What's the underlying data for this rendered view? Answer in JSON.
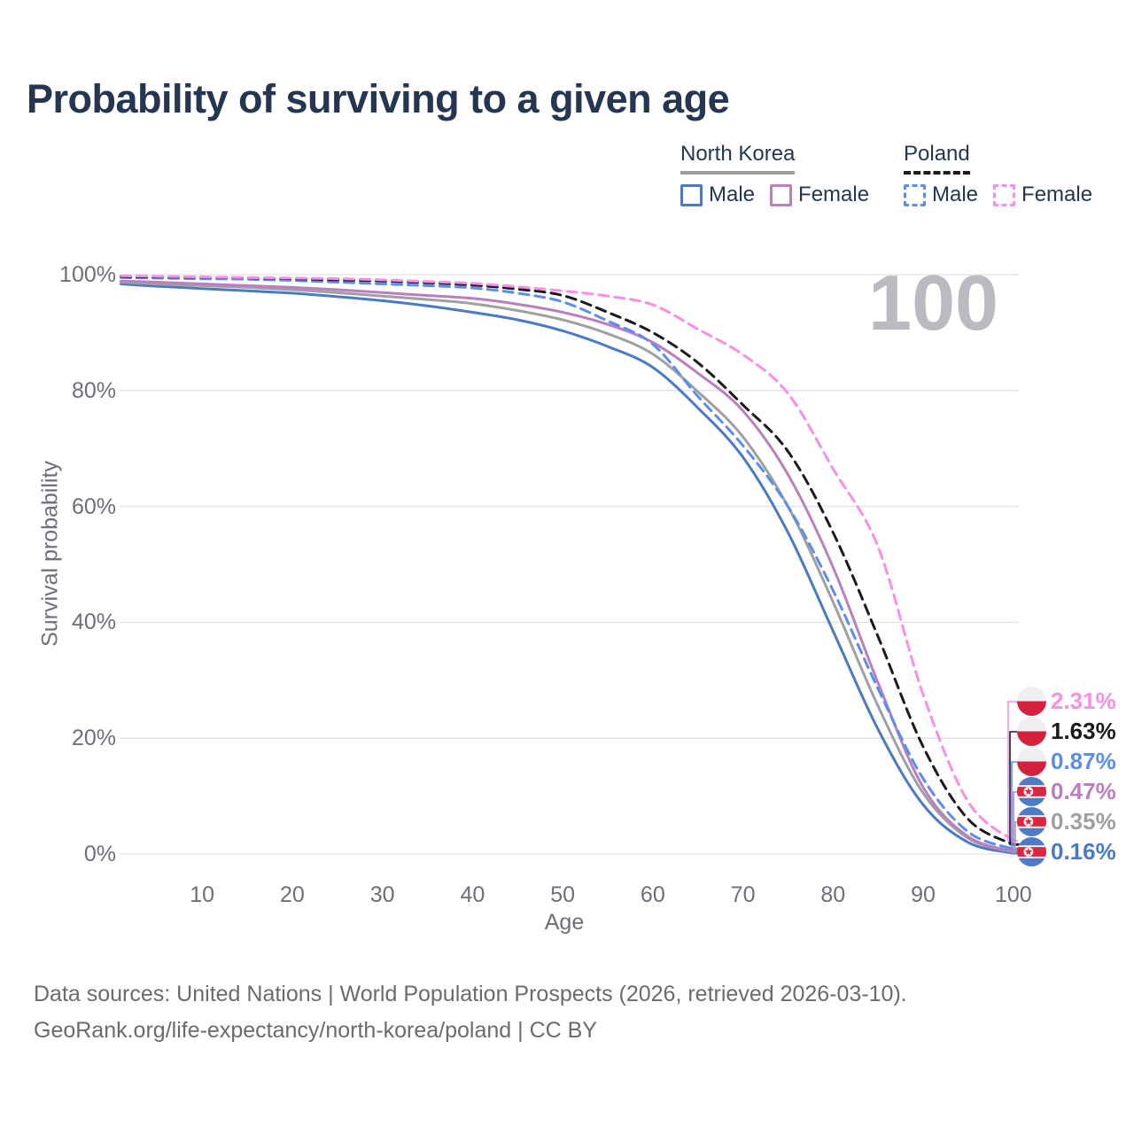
{
  "title": "Probability of surviving to a given age",
  "watermark_age": "100",
  "colors": {
    "title_text": "#243650",
    "axis_text": "#6e6e76",
    "grid": "#e1e1e5",
    "watermark": "#babac0",
    "footer_text": "#6b6b6b",
    "north_korea_male": "#4a79c5",
    "north_korea_female": "#bb7fbd",
    "north_korea_all": "#a0a0a4",
    "poland_male": "#5b8def",
    "poland_female": "#fa8ee6",
    "poland_all": "#1b1b1d"
  },
  "legend": {
    "groups": [
      {
        "label": "North Korea",
        "line_style": "solid",
        "underline_color": "#9e9ea2",
        "items": [
          {
            "label": "Male",
            "color": "#4a79c5"
          },
          {
            "label": "Female",
            "color": "#bb7fbd"
          }
        ]
      },
      {
        "label": "Poland",
        "line_style": "dashed",
        "underline_color": "#1b1b1d",
        "items": [
          {
            "label": "Male",
            "color": "#5b8def"
          },
          {
            "label": "Female",
            "color": "#fa8ee6"
          }
        ]
      }
    ]
  },
  "axes": {
    "y_title": "Survival probability",
    "x_title": "Age",
    "y_ticks": [
      {
        "value": 100,
        "label": "100%"
      },
      {
        "value": 80,
        "label": "80%"
      },
      {
        "value": 60,
        "label": "60%"
      },
      {
        "value": 40,
        "label": "40%"
      },
      {
        "value": 20,
        "label": "20%"
      },
      {
        "value": 0,
        "label": "0%"
      }
    ],
    "x_ticks": [
      10,
      20,
      30,
      40,
      50,
      60,
      70,
      80,
      90,
      100
    ]
  },
  "chart_data": {
    "type": "line",
    "title": "Probability of surviving to a given age",
    "xlabel": "Age",
    "ylabel": "Survival probability",
    "xlim": [
      1,
      100
    ],
    "ylim": [
      0,
      100
    ],
    "grid": true,
    "x": [
      1,
      5,
      10,
      15,
      20,
      25,
      30,
      35,
      40,
      45,
      50,
      55,
      60,
      65,
      70,
      75,
      80,
      85,
      90,
      95,
      100
    ],
    "series": [
      {
        "name": "North Korea Male",
        "country": "North Korea",
        "sex": "Male",
        "line": "solid",
        "color": "#4a79c5",
        "end_label": "0.16%",
        "values": [
          98.4,
          98.0,
          97.6,
          97.2,
          96.8,
          96.2,
          95.5,
          94.6,
          93.5,
          92.2,
          90.3,
          87.6,
          84.0,
          77.0,
          68.5,
          55.5,
          38.5,
          21.5,
          8.5,
          2.0,
          0.16
        ]
      },
      {
        "name": "North Korea (both sexes)",
        "country": "North Korea",
        "sex": "All",
        "line": "solid",
        "color": "#a0a0a4",
        "end_label": "0.35%",
        "values": [
          98.7,
          98.4,
          98.1,
          97.8,
          97.4,
          96.9,
          96.3,
          95.7,
          95.0,
          93.8,
          92.2,
          89.8,
          86.3,
          79.8,
          72.0,
          60.0,
          43.5,
          25.5,
          10.5,
          2.7,
          0.35
        ]
      },
      {
        "name": "North Korea Female",
        "country": "North Korea",
        "sex": "Female",
        "line": "solid",
        "color": "#bb7fbd",
        "end_label": "0.47%",
        "values": [
          98.9,
          98.7,
          98.4,
          98.1,
          97.8,
          97.4,
          96.9,
          96.4,
          95.9,
          94.9,
          93.5,
          91.4,
          88.3,
          83.0,
          76.5,
          65.5,
          49.5,
          29.5,
          11.5,
          3.0,
          0.47
        ]
      },
      {
        "name": "Poland Male",
        "country": "Poland",
        "sex": "Male",
        "line": "dashed",
        "color": "#5b8def",
        "end_label": "0.87%",
        "values": [
          99.5,
          99.4,
          99.3,
          99.2,
          99.0,
          98.7,
          98.4,
          98.1,
          97.7,
          96.8,
          95.3,
          92.0,
          88.0,
          79.0,
          70.5,
          60.0,
          45.5,
          28.5,
          13.0,
          3.8,
          0.87
        ]
      },
      {
        "name": "Poland (both sexes)",
        "country": "Poland",
        "sex": "All",
        "line": "dashed",
        "color": "#1b1b1d",
        "end_label": "1.63%",
        "values": [
          99.7,
          99.6,
          99.55,
          99.45,
          99.3,
          99.1,
          98.9,
          98.6,
          98.2,
          97.5,
          96.4,
          93.5,
          90.0,
          84.8,
          77.5,
          69.5,
          55.5,
          37.5,
          18.5,
          6.0,
          1.63
        ]
      },
      {
        "name": "Poland Female",
        "country": "Poland",
        "sex": "Female",
        "line": "dashed",
        "color": "#fa8ee6",
        "end_label": "2.31%",
        "values": [
          99.8,
          99.7,
          99.6,
          99.5,
          99.4,
          99.3,
          99.1,
          98.8,
          98.5,
          97.9,
          97.2,
          96.3,
          94.8,
          90.6,
          86.2,
          79.5,
          66.5,
          53.0,
          27.5,
          9.0,
          2.31
        ]
      }
    ]
  },
  "footer": {
    "line1": "Data sources: United Nations | World Population Prospects (2026, retrieved 2026-03-10).",
    "line2": "GeoRank.org/life-expectancy/north-korea/poland | CC BY"
  }
}
